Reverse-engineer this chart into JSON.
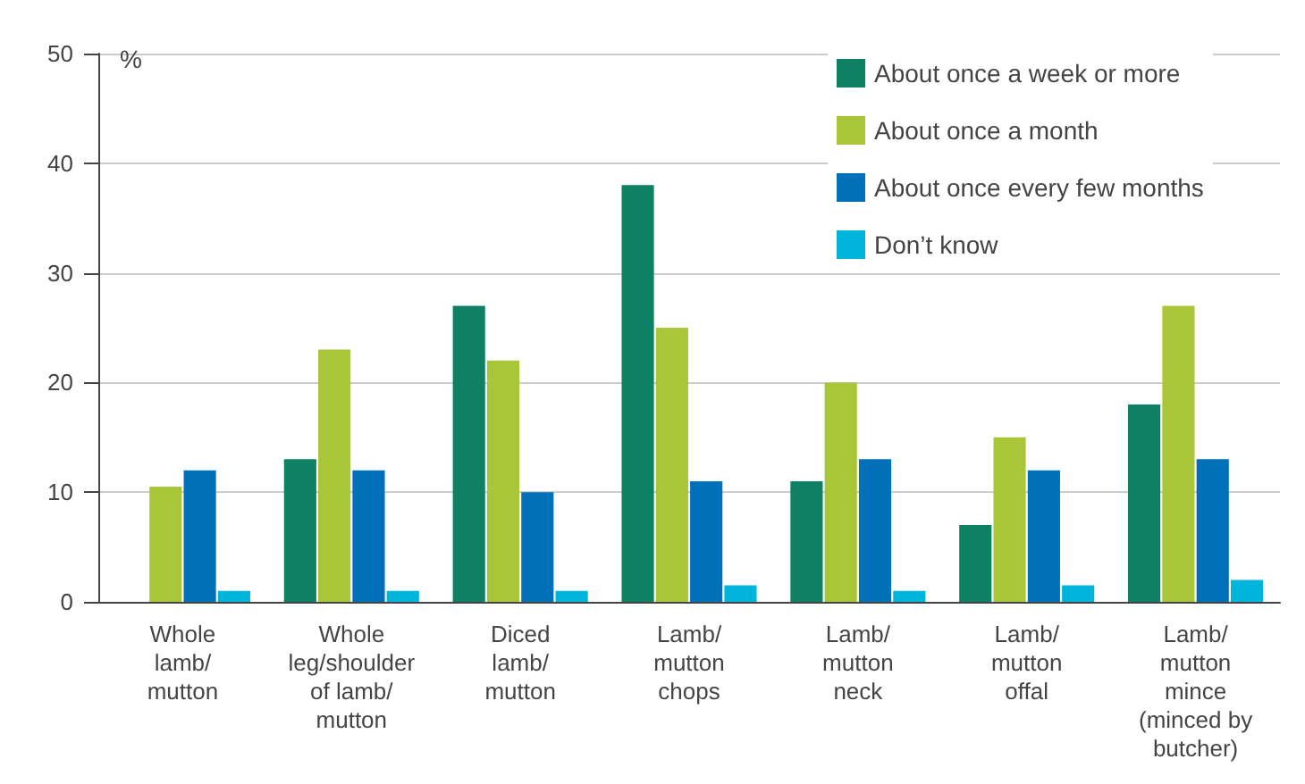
{
  "chart_data": {
    "type": "bar",
    "ylabel": "%",
    "categories": [
      "Whole\nlamb/\nmutton",
      "Whole\nleg/shoulder\nof lamb/\nmutton",
      "Diced\nlamb/\nmutton",
      "Lamb/\nmutton\nchops",
      "Lamb/\nmutton\nneck",
      "Lamb/\nmutton\noffal",
      "Lamb/\nmutton\nmince\n(minced by\nbutcher)"
    ],
    "series": [
      {
        "name": "About once a week or more",
        "color": "#0e8063",
        "values": [
          0,
          13,
          27,
          38,
          11,
          7,
          18
        ]
      },
      {
        "name": "About once a month",
        "color": "#a8c637",
        "values": [
          10.5,
          23,
          22,
          25,
          20,
          15,
          27
        ]
      },
      {
        "name": "About once every few months",
        "color": "#0070b8",
        "values": [
          12,
          12,
          10,
          11,
          13,
          12,
          13
        ]
      },
      {
        "name": "Don’t know",
        "color": "#00b4dc",
        "values": [
          1,
          1,
          1,
          1.5,
          1,
          1.5,
          2
        ]
      }
    ],
    "ylim": [
      0,
      50
    ],
    "yticks": [
      0,
      10,
      20,
      30,
      40,
      50
    ],
    "grid": "y",
    "legend": "top right"
  }
}
